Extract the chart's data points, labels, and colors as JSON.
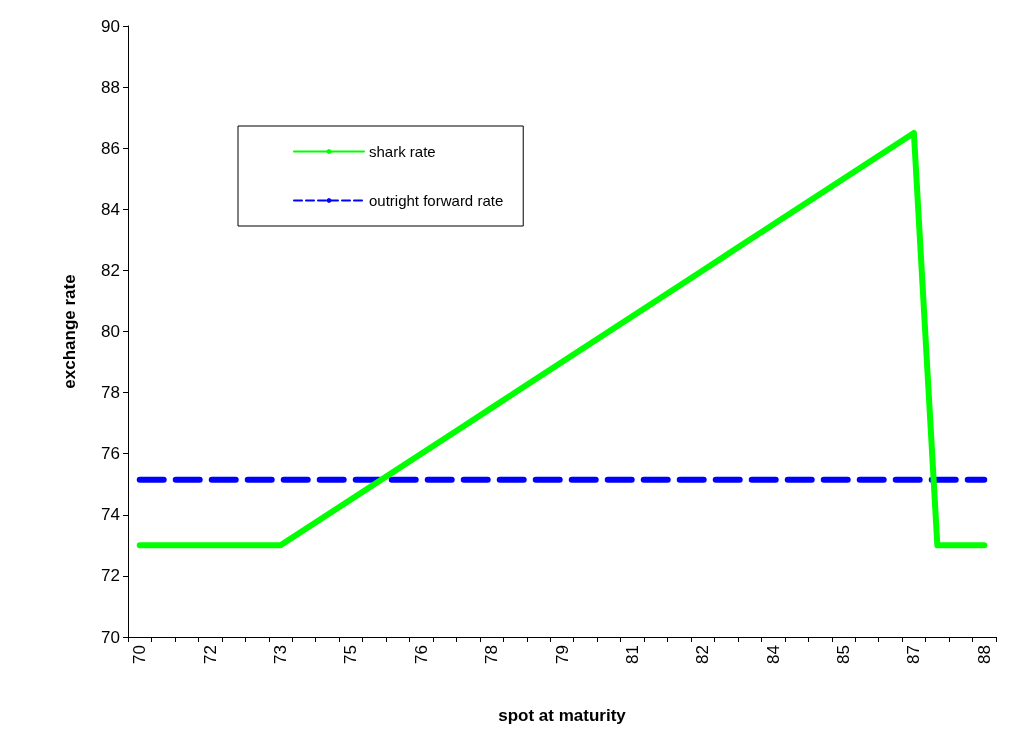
{
  "chart_data": {
    "type": "line",
    "xlabel": "spot at maturity",
    "ylabel": "exchange rate",
    "categories": [
      "70",
      null,
      null,
      "72",
      null,
      null,
      "73",
      null,
      null,
      "75",
      null,
      null,
      "76",
      null,
      null,
      "78",
      null,
      null,
      "79",
      null,
      null,
      "81",
      null,
      null,
      "82",
      null,
      null,
      "84",
      null,
      null,
      "85",
      null,
      null,
      "87",
      null,
      null,
      "88"
    ],
    "series": [
      {
        "name": "shark rate",
        "color": "#00ff00",
        "line_style": "solid",
        "values": [
          73,
          73,
          73,
          73,
          73,
          73,
          73,
          73.5,
          74,
          74.5,
          75,
          75.5,
          76,
          76.5,
          77,
          77.5,
          78,
          78.5,
          79,
          79.5,
          80,
          80.5,
          81,
          81.5,
          82,
          82.5,
          83,
          83.5,
          84,
          84.5,
          85,
          85.5,
          86,
          86.5,
          73,
          73,
          73
        ]
      },
      {
        "name": "outright forward rate",
        "color": "#0000ff",
        "line_style": "dashed",
        "values": [
          75.15,
          75.15,
          75.15,
          75.15,
          75.15,
          75.15,
          75.15,
          75.15,
          75.15,
          75.15,
          75.15,
          75.15,
          75.15,
          75.15,
          75.15,
          75.15,
          75.15,
          75.15,
          75.15,
          75.15,
          75.15,
          75.15,
          75.15,
          75.15,
          75.15,
          75.15,
          75.15,
          75.15,
          75.15,
          75.15,
          75.15,
          75.15,
          75.15,
          75.15,
          75.15,
          75.15,
          75.15
        ]
      }
    ],
    "ylim": [
      70,
      90
    ],
    "yticks": [
      70,
      72,
      74,
      76,
      78,
      80,
      82,
      84,
      86,
      88,
      90
    ],
    "grid": false,
    "legend": "top left",
    "marker": "none"
  }
}
